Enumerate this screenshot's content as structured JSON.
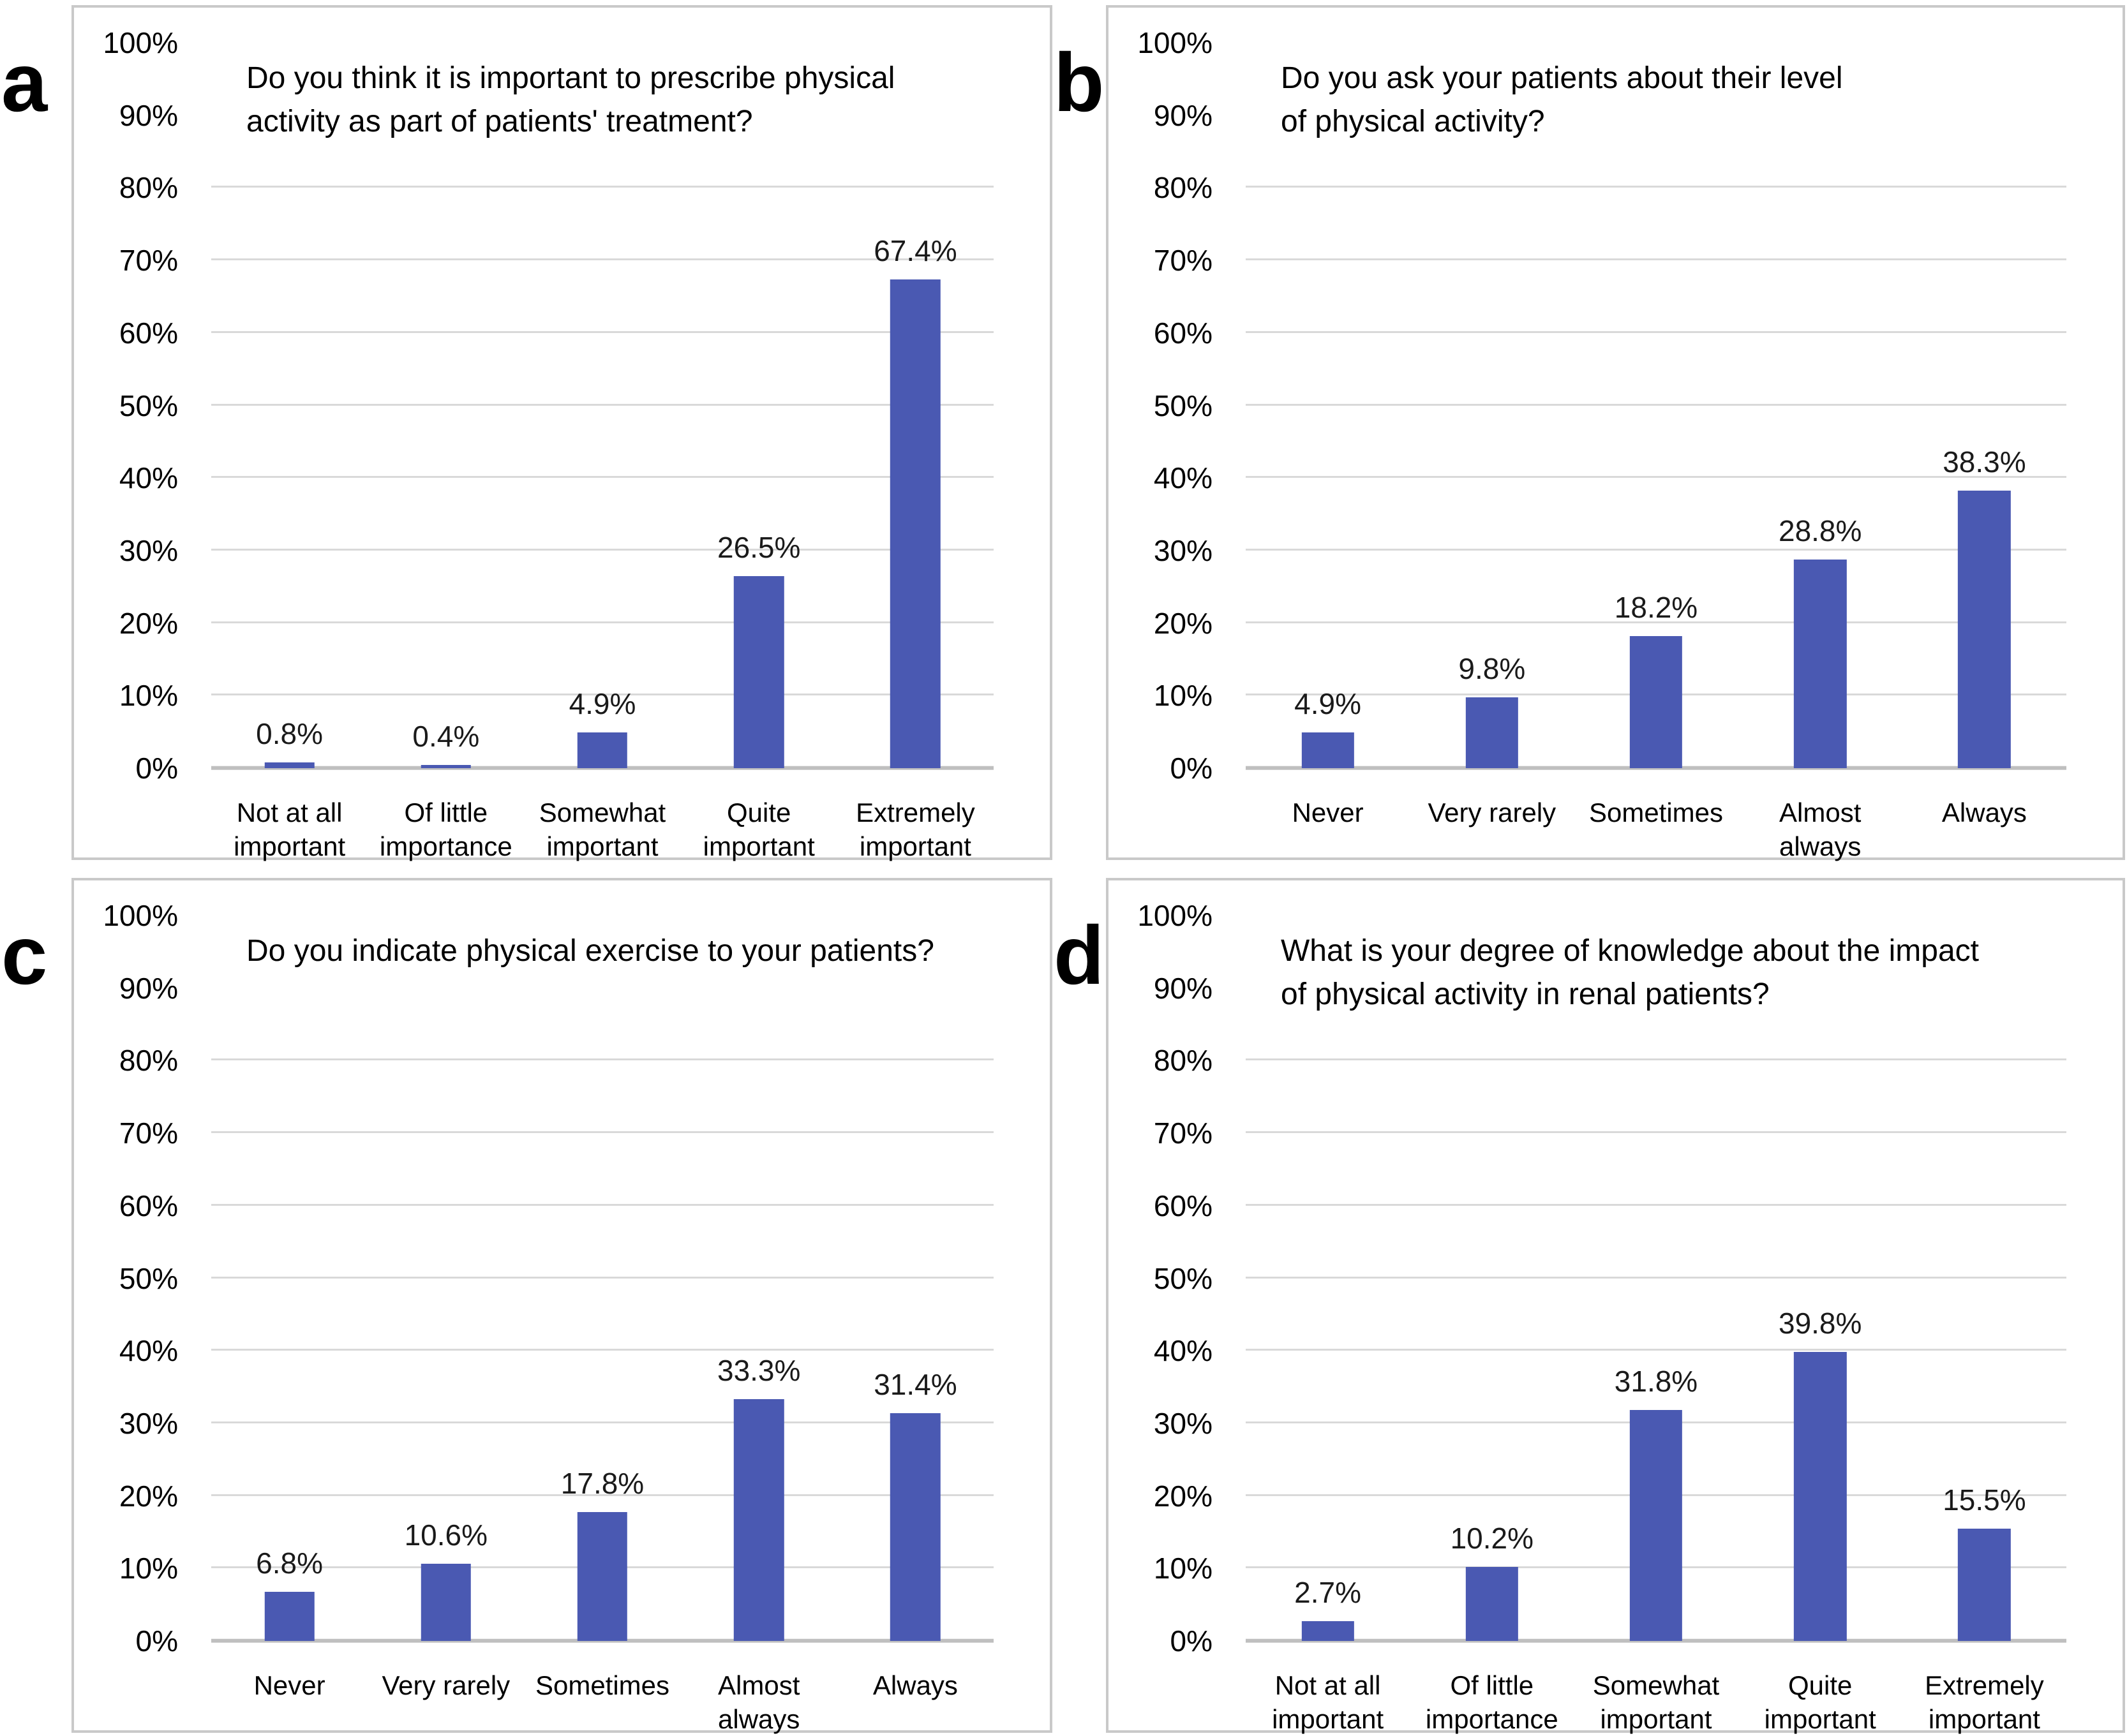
{
  "style": {
    "bar_color": "#4a59b2",
    "gridline_color": "#d9d9d9",
    "baseline_color": "#bfbfbf",
    "panel_border_color": "#c9c9c9",
    "text_color": "#000000"
  },
  "axis": {
    "ylim": [
      0,
      100
    ],
    "y_ticks": [
      {
        "label": "100%",
        "value": 100
      },
      {
        "label": "90%",
        "value": 90
      },
      {
        "label": "80%",
        "value": 80
      },
      {
        "label": "70%",
        "value": 70
      },
      {
        "label": "60%",
        "value": 60
      },
      {
        "label": "50%",
        "value": 50
      },
      {
        "label": "40%",
        "value": 40
      },
      {
        "label": "30%",
        "value": 30
      },
      {
        "label": "20%",
        "value": 20
      },
      {
        "label": "10%",
        "value": 10
      },
      {
        "label": "0%",
        "value": 0
      }
    ],
    "gridline_values": [
      10,
      20,
      30,
      40,
      50,
      60,
      70,
      80
    ],
    "grid": "horizontal only, none above 80%"
  },
  "chart_data": [
    {
      "type": "bar",
      "panel_label": "a",
      "title": "Do you think it is important to prescribe physical activity as part of patients' treatment?",
      "title_lines": [
        "Do you think it is important to prescribe physical",
        "activity as part of patients' treatment?"
      ],
      "categories": [
        "Not at all important",
        "Of little importance",
        "Somewhat important",
        "Quite important",
        "Extremely important"
      ],
      "values": [
        0.8,
        0.4,
        4.9,
        26.5,
        67.4
      ],
      "value_labels": [
        "0.8%",
        "0.4%",
        "4.9%",
        "26.5%",
        "67.4%"
      ],
      "xlabel": "",
      "ylabel": "",
      "ylim": [
        0,
        100
      ],
      "legend": "none"
    },
    {
      "type": "bar",
      "panel_label": "b",
      "title": "Do you ask your patients about their level of physical activity?",
      "title_lines": [
        "Do you ask your patients about their level",
        "of physical activity?"
      ],
      "categories": [
        "Never",
        "Very rarely",
        "Sometimes",
        "Almost always",
        "Always"
      ],
      "values": [
        4.9,
        9.8,
        18.2,
        28.8,
        38.3
      ],
      "value_labels": [
        "4.9%",
        "9.8%",
        "18.2%",
        "28.8%",
        "38.3%"
      ],
      "xlabel": "",
      "ylabel": "",
      "ylim": [
        0,
        100
      ],
      "legend": "none"
    },
    {
      "type": "bar",
      "panel_label": "c",
      "title": "Do you indicate physical exercise to your patients?",
      "title_lines": [
        "Do you indicate physical exercise to your patients?"
      ],
      "categories": [
        "Never",
        "Very rarely",
        "Sometimes",
        "Almost always",
        "Always"
      ],
      "values": [
        6.8,
        10.6,
        17.8,
        33.3,
        31.4
      ],
      "value_labels": [
        "6.8%",
        "10.6%",
        "17.8%",
        "33.3%",
        "31.4%"
      ],
      "xlabel": "",
      "ylabel": "",
      "ylim": [
        0,
        100
      ],
      "legend": "none"
    },
    {
      "type": "bar",
      "panel_label": "d",
      "title": "What is your degree of knowledge about the impact of physical activity in renal patients?",
      "title_lines": [
        "What is your degree of knowledge about the impact",
        "of physical activity in renal patients?"
      ],
      "categories": [
        "Not at all important",
        "Of little importance",
        "Somewhat important",
        "Quite important",
        "Extremely important"
      ],
      "values": [
        2.7,
        10.2,
        31.8,
        39.8,
        15.5
      ],
      "value_labels": [
        "2.7%",
        "10.2%",
        "31.8%",
        "39.8%",
        "15.5%"
      ],
      "xlabel": "",
      "ylabel": "",
      "ylim": [
        0,
        100
      ],
      "legend": "none"
    }
  ]
}
